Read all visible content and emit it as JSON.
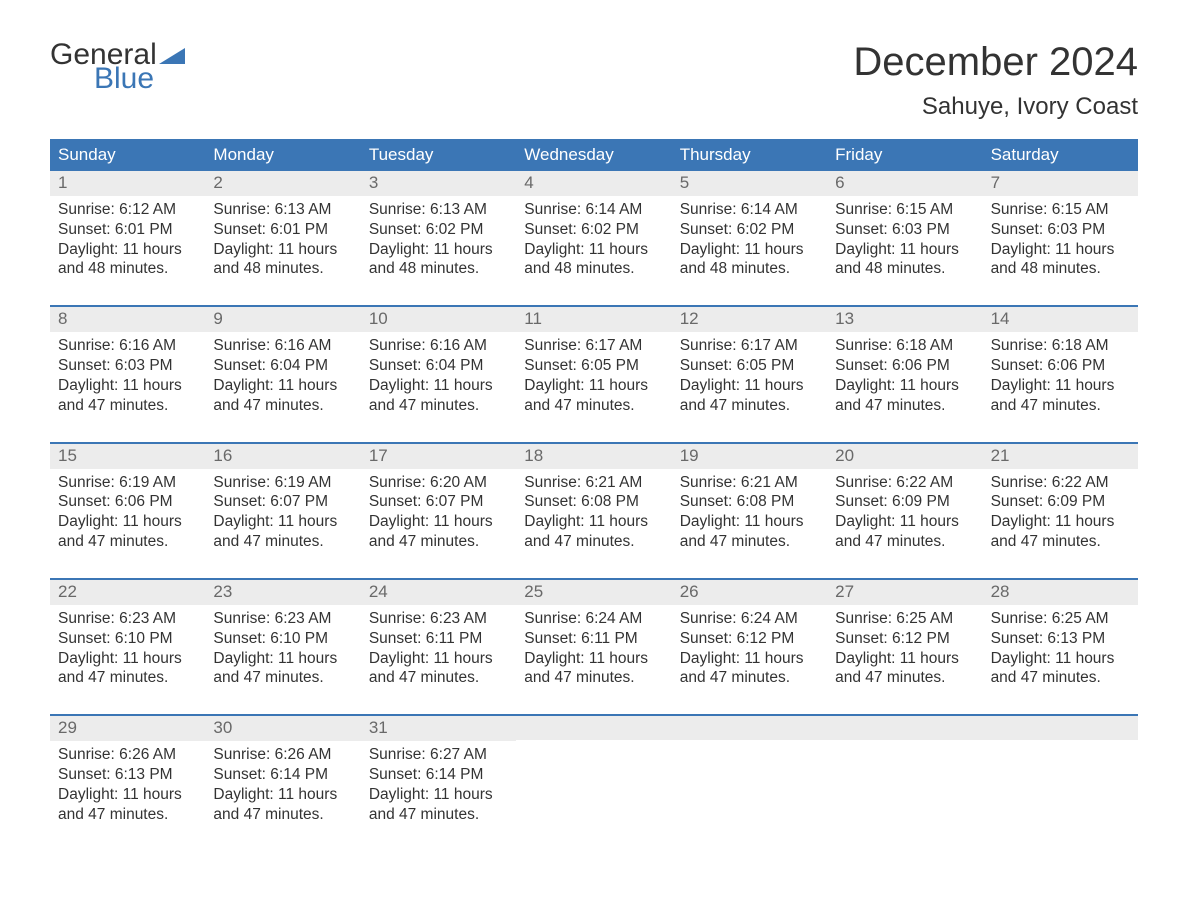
{
  "logo": {
    "general": "General",
    "blue": "Blue",
    "flag_color": "#3b76b5"
  },
  "title": "December 2024",
  "location": "Sahuye, Ivory Coast",
  "colors": {
    "header_bg": "#3b76b5",
    "header_text": "#ffffff",
    "daynum_bg": "#ececec",
    "daynum_text": "#696969",
    "body_text": "#333333",
    "week_border": "#3b76b5"
  },
  "day_headers": [
    "Sunday",
    "Monday",
    "Tuesday",
    "Wednesday",
    "Thursday",
    "Friday",
    "Saturday"
  ],
  "weeks": [
    [
      {
        "n": "1",
        "sunrise": "6:12 AM",
        "sunset": "6:01 PM",
        "dl": "11 hours and 48 minutes."
      },
      {
        "n": "2",
        "sunrise": "6:13 AM",
        "sunset": "6:01 PM",
        "dl": "11 hours and 48 minutes."
      },
      {
        "n": "3",
        "sunrise": "6:13 AM",
        "sunset": "6:02 PM",
        "dl": "11 hours and 48 minutes."
      },
      {
        "n": "4",
        "sunrise": "6:14 AM",
        "sunset": "6:02 PM",
        "dl": "11 hours and 48 minutes."
      },
      {
        "n": "5",
        "sunrise": "6:14 AM",
        "sunset": "6:02 PM",
        "dl": "11 hours and 48 minutes."
      },
      {
        "n": "6",
        "sunrise": "6:15 AM",
        "sunset": "6:03 PM",
        "dl": "11 hours and 48 minutes."
      },
      {
        "n": "7",
        "sunrise": "6:15 AM",
        "sunset": "6:03 PM",
        "dl": "11 hours and 48 minutes."
      }
    ],
    [
      {
        "n": "8",
        "sunrise": "6:16 AM",
        "sunset": "6:03 PM",
        "dl": "11 hours and 47 minutes."
      },
      {
        "n": "9",
        "sunrise": "6:16 AM",
        "sunset": "6:04 PM",
        "dl": "11 hours and 47 minutes."
      },
      {
        "n": "10",
        "sunrise": "6:16 AM",
        "sunset": "6:04 PM",
        "dl": "11 hours and 47 minutes."
      },
      {
        "n": "11",
        "sunrise": "6:17 AM",
        "sunset": "6:05 PM",
        "dl": "11 hours and 47 minutes."
      },
      {
        "n": "12",
        "sunrise": "6:17 AM",
        "sunset": "6:05 PM",
        "dl": "11 hours and 47 minutes."
      },
      {
        "n": "13",
        "sunrise": "6:18 AM",
        "sunset": "6:06 PM",
        "dl": "11 hours and 47 minutes."
      },
      {
        "n": "14",
        "sunrise": "6:18 AM",
        "sunset": "6:06 PM",
        "dl": "11 hours and 47 minutes."
      }
    ],
    [
      {
        "n": "15",
        "sunrise": "6:19 AM",
        "sunset": "6:06 PM",
        "dl": "11 hours and 47 minutes."
      },
      {
        "n": "16",
        "sunrise": "6:19 AM",
        "sunset": "6:07 PM",
        "dl": "11 hours and 47 minutes."
      },
      {
        "n": "17",
        "sunrise": "6:20 AM",
        "sunset": "6:07 PM",
        "dl": "11 hours and 47 minutes."
      },
      {
        "n": "18",
        "sunrise": "6:21 AM",
        "sunset": "6:08 PM",
        "dl": "11 hours and 47 minutes."
      },
      {
        "n": "19",
        "sunrise": "6:21 AM",
        "sunset": "6:08 PM",
        "dl": "11 hours and 47 minutes."
      },
      {
        "n": "20",
        "sunrise": "6:22 AM",
        "sunset": "6:09 PM",
        "dl": "11 hours and 47 minutes."
      },
      {
        "n": "21",
        "sunrise": "6:22 AM",
        "sunset": "6:09 PM",
        "dl": "11 hours and 47 minutes."
      }
    ],
    [
      {
        "n": "22",
        "sunrise": "6:23 AM",
        "sunset": "6:10 PM",
        "dl": "11 hours and 47 minutes."
      },
      {
        "n": "23",
        "sunrise": "6:23 AM",
        "sunset": "6:10 PM",
        "dl": "11 hours and 47 minutes."
      },
      {
        "n": "24",
        "sunrise": "6:23 AM",
        "sunset": "6:11 PM",
        "dl": "11 hours and 47 minutes."
      },
      {
        "n": "25",
        "sunrise": "6:24 AM",
        "sunset": "6:11 PM",
        "dl": "11 hours and 47 minutes."
      },
      {
        "n": "26",
        "sunrise": "6:24 AM",
        "sunset": "6:12 PM",
        "dl": "11 hours and 47 minutes."
      },
      {
        "n": "27",
        "sunrise": "6:25 AM",
        "sunset": "6:12 PM",
        "dl": "11 hours and 47 minutes."
      },
      {
        "n": "28",
        "sunrise": "6:25 AM",
        "sunset": "6:13 PM",
        "dl": "11 hours and 47 minutes."
      }
    ],
    [
      {
        "n": "29",
        "sunrise": "6:26 AM",
        "sunset": "6:13 PM",
        "dl": "11 hours and 47 minutes."
      },
      {
        "n": "30",
        "sunrise": "6:26 AM",
        "sunset": "6:14 PM",
        "dl": "11 hours and 47 minutes."
      },
      {
        "n": "31",
        "sunrise": "6:27 AM",
        "sunset": "6:14 PM",
        "dl": "11 hours and 47 minutes."
      },
      null,
      null,
      null,
      null
    ]
  ],
  "labels": {
    "sunrise": "Sunrise:",
    "sunset": "Sunset:",
    "daylight": "Daylight:"
  }
}
